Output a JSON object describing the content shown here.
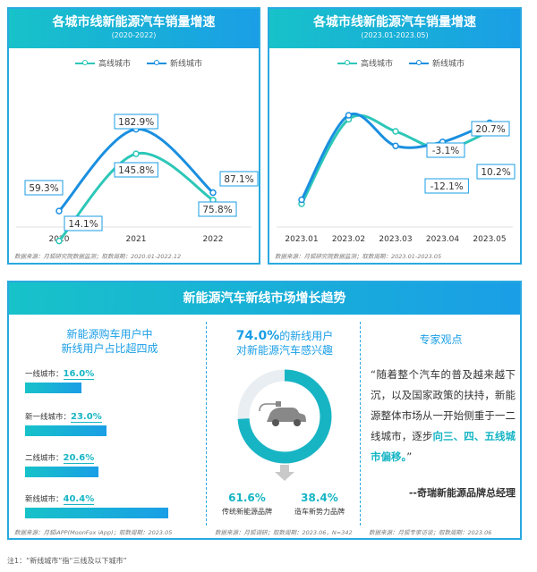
{
  "panel_left": {
    "title": "各城市线新能源汽车销量增速",
    "subtitle": "(2020-2022)",
    "source": "数据来源：月狐研究院数据监测；取数周期：2020.01-2022.12"
  },
  "panel_right": {
    "title": "各城市线新能源汽车销量增速",
    "subtitle": "(2023.01-2023.05)",
    "source": "数据来源：月狐研究院数据监测；取数周期：2023.01-2023.05"
  },
  "legend": {
    "high": "高线城市",
    "new": "新线城市"
  },
  "colors": {
    "high": "#2dc7b8",
    "new": "#1a8fe0",
    "accent": "#17b5c4"
  },
  "chart_data": [
    {
      "type": "line",
      "categories": [
        "2020",
        "2021",
        "2022"
      ],
      "series": [
        {
          "name": "高线城市",
          "values": [
            14.1,
            145.8,
            75.8
          ],
          "labels": [
            "14.1%",
            "145.8%",
            "75.8%"
          ]
        },
        {
          "name": "新线城市",
          "values": [
            59.3,
            182.9,
            87.1
          ],
          "labels": [
            "59.3%",
            "182.9%",
            "87.1%"
          ]
        }
      ]
    },
    {
      "type": "line",
      "categories": [
        "2023.01",
        "2023.02",
        "2023.03",
        "2023.04",
        "2023.05"
      ],
      "series": [
        {
          "name": "高线城市",
          "values": [
            -80,
            25,
            10,
            -12.1,
            10.2
          ],
          "labels": [
            "",
            "",
            "",
            "-12.1%",
            "10.2%"
          ]
        },
        {
          "name": "新线城市",
          "values": [
            -75,
            30,
            -8,
            -3.1,
            20.7
          ],
          "labels": [
            "",
            "",
            "",
            "-3.1%",
            "20.7%"
          ]
        }
      ]
    }
  ],
  "bottom": {
    "title": "新能源汽车新线市场增长趋势",
    "col1": {
      "title": "新能源购车用户中\n新线用户占比超四成",
      "cities": [
        {
          "label": "一线城市：",
          "value": "16.0%",
          "share": 0.16
        },
        {
          "label": "新一线城市：",
          "value": "23.0%",
          "share": 0.23
        },
        {
          "label": "二线城市：",
          "value": "20.6%",
          "share": 0.206
        },
        {
          "label": "新线城市：",
          "value": "40.4%",
          "share": 0.404
        }
      ],
      "source": "数据来源：月狐iAPP(MoonFox iApp)；取数周期：2023.05"
    },
    "col2": {
      "title_pct": "74.0%",
      "title_rest": "的新线用户",
      "title_line2": "对新能源汽车感兴趣",
      "interest": 0.74,
      "left_pct": "61.6%",
      "left_label": "传统新能源品牌",
      "right_pct": "38.4%",
      "right_label": "造车新势力品牌",
      "source": "数据来源：月狐调研；取数周期：2023.06，N=342"
    },
    "col3": {
      "title": "专家观点",
      "quote_plain": "“随着整个汽车的普及越来越下沉，以及国家政策的扶持，新能源整体市场从一开始侧重于一二线城市，逐步",
      "quote_bold": "向三、四、五线城市偏移。",
      "quote_end": "”",
      "author": "--奇瑞新能源品牌总经理",
      "source": "数据来源：月狐专家访谈；取数周期：2023.06"
    }
  },
  "footnote": "注1：“新线城市”指“三线及以下城市”"
}
